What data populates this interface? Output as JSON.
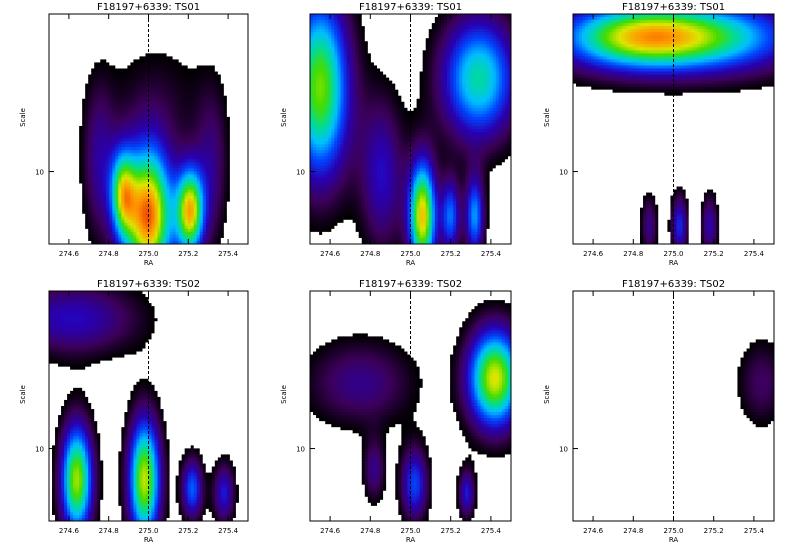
{
  "chart_data": [
    {
      "type": "heatmap",
      "title": "F18197+6339: TS01",
      "xlabel": "RA",
      "ylabel": "Scale",
      "xlim": [
        274.5,
        275.5
      ],
      "xticks": [
        "274.6",
        "274.8",
        "275.0",
        "275.2",
        "275.4"
      ],
      "yticks": [
        "10"
      ],
      "marker_x": 275.0,
      "blobs": [
        {
          "x": 275.0,
          "y": 0.12,
          "sx": 0.09,
          "sy": 0.22,
          "a": 0.95
        },
        {
          "x": 274.87,
          "y": 0.22,
          "sx": 0.045,
          "sy": 0.14,
          "a": 0.55
        },
        {
          "x": 275.21,
          "y": 0.14,
          "sx": 0.05,
          "sy": 0.14,
          "a": 0.8
        },
        {
          "x": 274.75,
          "y": 0.35,
          "sx": 0.06,
          "sy": 0.25,
          "a": 0.25
        },
        {
          "x": 275.32,
          "y": 0.32,
          "sx": 0.06,
          "sy": 0.25,
          "a": 0.22
        },
        {
          "x": 275.05,
          "y": 0.62,
          "sx": 0.2,
          "sy": 0.22,
          "a": 0.12
        }
      ]
    },
    {
      "type": "heatmap",
      "title": "F18197+6339: TS01",
      "xlabel": "RA",
      "ylabel": "Scale",
      "xlim": [
        274.5,
        275.5
      ],
      "xticks": [
        "274.6",
        "274.8",
        "275.0",
        "275.2",
        "275.4"
      ],
      "yticks": [
        "10"
      ],
      "marker_x": 275.0,
      "blobs": [
        {
          "x": 275.06,
          "y": 0.12,
          "sx": 0.05,
          "sy": 0.18,
          "a": 0.85
        },
        {
          "x": 275.2,
          "y": 0.12,
          "sx": 0.035,
          "sy": 0.12,
          "a": 0.45
        },
        {
          "x": 275.32,
          "y": 0.12,
          "sx": 0.035,
          "sy": 0.13,
          "a": 0.5
        },
        {
          "x": 274.55,
          "y": 0.68,
          "sx": 0.11,
          "sy": 0.3,
          "a": 0.75
        },
        {
          "x": 275.34,
          "y": 0.72,
          "sx": 0.14,
          "sy": 0.2,
          "a": 0.62
        },
        {
          "x": 274.86,
          "y": 0.3,
          "sx": 0.08,
          "sy": 0.25,
          "a": 0.32
        }
      ]
    },
    {
      "type": "heatmap",
      "title": "F18197+6339: TS01",
      "xlabel": "RA",
      "ylabel": "Scale",
      "xlim": [
        274.5,
        275.5
      ],
      "xticks": [
        "274.6",
        "274.8",
        "275.0",
        "275.2",
        "275.4"
      ],
      "yticks": [
        "10"
      ],
      "marker_x": 275.0,
      "blobs": [
        {
          "x": 274.82,
          "y": 0.9,
          "sx": 0.3,
          "sy": 0.11,
          "a": 0.78
        },
        {
          "x": 275.3,
          "y": 0.9,
          "sx": 0.3,
          "sy": 0.12,
          "a": 0.42
        },
        {
          "x": 275.03,
          "y": 0.08,
          "sx": 0.03,
          "sy": 0.1,
          "a": 0.38
        },
        {
          "x": 275.18,
          "y": 0.08,
          "sx": 0.03,
          "sy": 0.1,
          "a": 0.3
        },
        {
          "x": 274.88,
          "y": 0.08,
          "sx": 0.03,
          "sy": 0.1,
          "a": 0.25
        }
      ]
    },
    {
      "type": "heatmap",
      "title": "F18197+6339: TS02",
      "xlabel": "RA",
      "ylabel": "Scale",
      "xlim": [
        274.5,
        275.5
      ],
      "xticks": [
        "274.6",
        "274.8",
        "275.0",
        "275.2",
        "275.4"
      ],
      "yticks": [
        "10"
      ],
      "marker_x": 275.0,
      "blobs": [
        {
          "x": 274.64,
          "y": 0.18,
          "sx": 0.06,
          "sy": 0.18,
          "a": 0.78
        },
        {
          "x": 274.98,
          "y": 0.18,
          "sx": 0.06,
          "sy": 0.2,
          "a": 0.8
        },
        {
          "x": 275.22,
          "y": 0.14,
          "sx": 0.04,
          "sy": 0.1,
          "a": 0.45
        },
        {
          "x": 275.38,
          "y": 0.12,
          "sx": 0.04,
          "sy": 0.1,
          "a": 0.35
        },
        {
          "x": 274.62,
          "y": 0.88,
          "sx": 0.25,
          "sy": 0.12,
          "a": 0.32
        }
      ]
    },
    {
      "type": "heatmap",
      "title": "F18197+6339: TS02",
      "xlabel": "RA",
      "ylabel": "Scale",
      "xlim": [
        274.5,
        275.5
      ],
      "xticks": [
        "274.6",
        "274.8",
        "275.0",
        "275.2",
        "275.4"
      ],
      "yticks": [
        "10"
      ],
      "marker_x": 275.0,
      "blobs": [
        {
          "x": 275.42,
          "y": 0.62,
          "sx": 0.1,
          "sy": 0.16,
          "a": 0.82
        },
        {
          "x": 275.02,
          "y": 0.16,
          "sx": 0.05,
          "sy": 0.12,
          "a": 0.42
        },
        {
          "x": 275.28,
          "y": 0.12,
          "sx": 0.03,
          "sy": 0.08,
          "a": 0.35
        },
        {
          "x": 274.82,
          "y": 0.22,
          "sx": 0.04,
          "sy": 0.1,
          "a": 0.25
        },
        {
          "x": 274.75,
          "y": 0.6,
          "sx": 0.2,
          "sy": 0.14,
          "a": 0.25
        }
      ]
    },
    {
      "type": "heatmap",
      "title": "F18197+6339: TS02",
      "xlabel": "RA",
      "ylabel": "Scale",
      "xlim": [
        274.5,
        275.5
      ],
      "xticks": [
        "274.6",
        "274.8",
        "275.0",
        "275.2",
        "275.4"
      ],
      "yticks": [
        "10"
      ],
      "marker_x": 275.0,
      "blobs": [
        {
          "x": 275.44,
          "y": 0.6,
          "sx": 0.09,
          "sy": 0.14,
          "a": 0.2
        }
      ]
    }
  ]
}
